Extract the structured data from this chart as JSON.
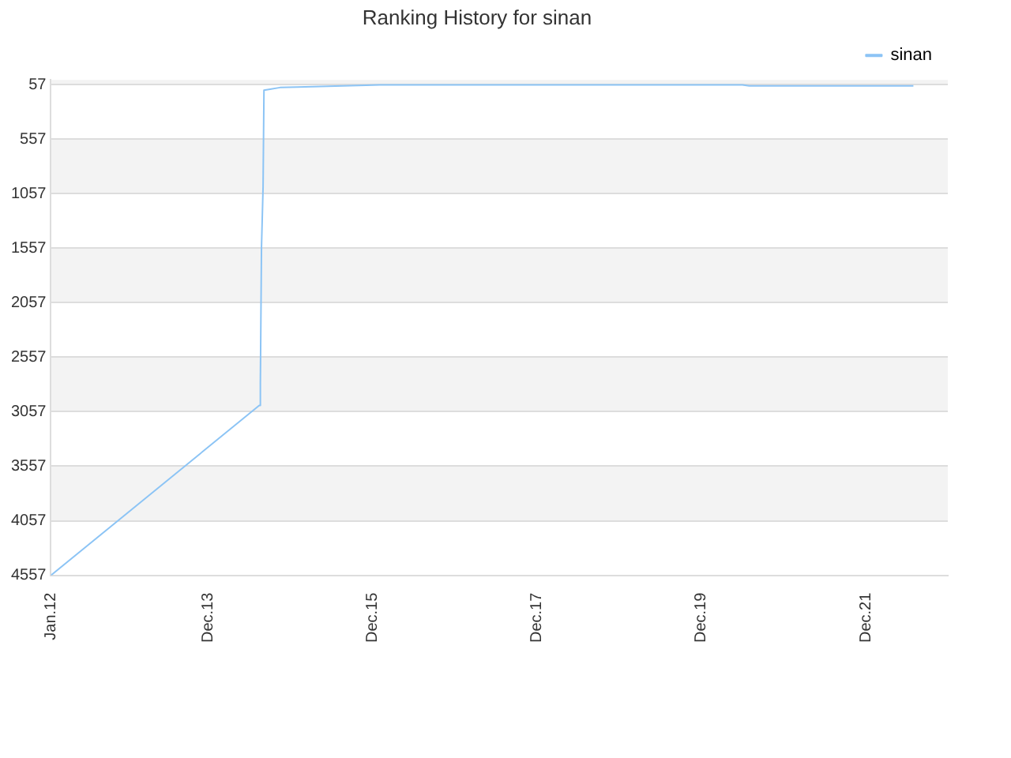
{
  "chart_data": {
    "type": "line",
    "title": "Ranking History for sinan",
    "x": [
      "2012-01",
      "2014-07-15",
      "2014-07-20",
      "2014-07-25",
      "2014-08-01",
      "2014-08-05",
      "2014-09-01",
      "2014-10-15",
      "2015-01",
      "2015-11",
      "2016-01",
      "2020-06",
      "2020-07",
      "2022-07"
    ],
    "series": [
      {
        "name": "sinan",
        "color": "#8cc4f5",
        "values": [
          4557,
          3000,
          2800,
          1550,
          1000,
          110,
          100,
          85,
          80,
          65,
          60,
          60,
          70,
          70
        ]
      }
    ],
    "xlim": [
      "2012-01",
      "2022-12"
    ],
    "xticks": [
      {
        "value": "2012-01",
        "label": "Jan.12"
      },
      {
        "value": "2013-12",
        "label": "Dec.13"
      },
      {
        "value": "2015-12",
        "label": "Dec.15"
      },
      {
        "value": "2017-12",
        "label": "Dec.17"
      },
      {
        "value": "2019-12",
        "label": "Dec.19"
      },
      {
        "value": "2021-12",
        "label": "Dec.21"
      }
    ],
    "ylim": [
      4557,
      15
    ],
    "yticks": [
      57,
      557,
      1057,
      1557,
      2057,
      2557,
      3057,
      3557,
      4057,
      4557
    ],
    "grid": "y",
    "legend": "top right",
    "marker": "none",
    "line_style": "solid"
  }
}
